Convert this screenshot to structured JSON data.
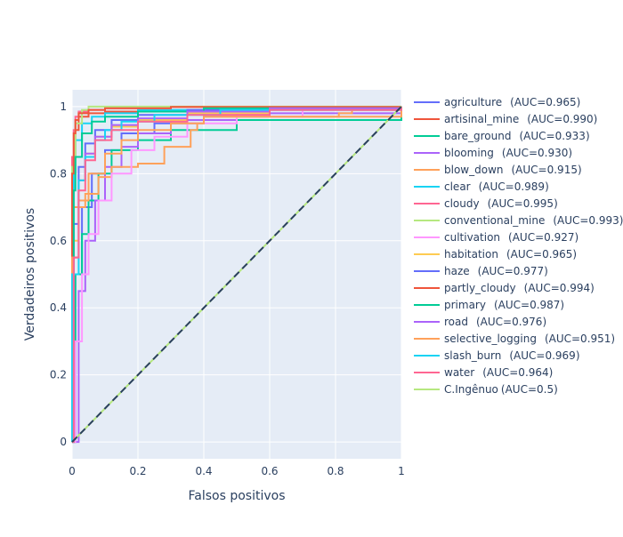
{
  "chart_data": {
    "type": "line",
    "title": "",
    "xlabel": "Falsos positivos",
    "ylabel": "Verdadeiros positivos",
    "xlim": [
      0,
      1
    ],
    "ylim": [
      -0.05,
      1.05
    ],
    "x_ticks": [
      "0",
      "0.2",
      "0.4",
      "0.6",
      "0.8",
      "1"
    ],
    "y_ticks": [
      "0",
      "0.2",
      "0.4",
      "0.6",
      "0.8",
      "1"
    ],
    "grid": true,
    "legend_position": "right",
    "series": [
      {
        "name": "agriculture",
        "auc_label": "(AUC=0.965)",
        "color": "#636efa",
        "x": [
          0,
          0.01,
          0.03,
          0.06,
          0.1,
          0.15,
          0.25,
          0.4,
          0.6,
          1
        ],
        "y": [
          0,
          0.5,
          0.7,
          0.8,
          0.87,
          0.92,
          0.95,
          0.975,
          0.99,
          1
        ]
      },
      {
        "name": "artisinal_mine",
        "auc_label": "(AUC=0.990)",
        "color": "#ef553b",
        "x": [
          0,
          0.0,
          0.01,
          0.02,
          0.05,
          0.1,
          0.3,
          0.57,
          0.57,
          1
        ],
        "y": [
          0,
          0.8,
          0.93,
          0.97,
          0.98,
          0.985,
          0.985,
          0.985,
          0.995,
          1
        ]
      },
      {
        "name": "bare_ground",
        "auc_label": "(AUC=0.933)",
        "color": "#00cc96",
        "x": [
          0,
          0.01,
          0.03,
          0.05,
          0.08,
          0.12,
          0.2,
          0.3,
          0.5,
          1
        ],
        "y": [
          0,
          0.5,
          0.62,
          0.72,
          0.8,
          0.87,
          0.9,
          0.93,
          0.96,
          1
        ]
      },
      {
        "name": "blooming",
        "auc_label": "(AUC=0.930)",
        "color": "#ab63fa",
        "x": [
          0,
          0.02,
          0.04,
          0.07,
          0.1,
          0.15,
          0.2,
          0.3,
          0.5,
          1
        ],
        "y": [
          0,
          0.45,
          0.6,
          0.72,
          0.82,
          0.88,
          0.92,
          0.96,
          0.98,
          1
        ]
      },
      {
        "name": "blow_down",
        "auc_label": "(AUC=0.915)",
        "color": "#ffa15a",
        "x": [
          0,
          0.0,
          0.04,
          0.08,
          0.12,
          0.2,
          0.28,
          0.36,
          0.38,
          0.4,
          0.81,
          0.85,
          1
        ],
        "y": [
          0,
          0.7,
          0.74,
          0.79,
          0.82,
          0.83,
          0.88,
          0.93,
          0.95,
          0.97,
          0.98,
          0.99,
          1
        ]
      },
      {
        "name": "clear",
        "auc_label": "(AUC=0.989)",
        "color": "#19d3f3",
        "x": [
          0,
          0.005,
          0.01,
          0.03,
          0.06,
          0.1,
          0.2,
          0.4,
          1
        ],
        "y": [
          0,
          0.8,
          0.9,
          0.95,
          0.97,
          0.98,
          0.99,
          0.997,
          1
        ]
      },
      {
        "name": "cloudy",
        "auc_label": "(AUC=0.995)",
        "color": "#ff6692",
        "x": [
          0,
          0.0,
          0.005,
          0.01,
          0.02,
          0.05,
          0.1,
          0.3,
          1
        ],
        "y": [
          0,
          0.85,
          0.93,
          0.97,
          0.985,
          0.99,
          0.995,
          0.999,
          1
        ]
      },
      {
        "name": "conventional_mine",
        "auc_label": "(AUC=0.993)",
        "color": "#b6e880",
        "x": [
          0,
          0.0,
          0.01,
          0.03,
          0.05,
          0.2,
          1
        ],
        "y": [
          0,
          0.82,
          0.95,
          0.99,
          1.0,
          1.0,
          1
        ]
      },
      {
        "name": "cultivation",
        "auc_label": "(AUC=0.927)",
        "color": "#ff97ff",
        "x": [
          0,
          0.01,
          0.03,
          0.05,
          0.08,
          0.12,
          0.18,
          0.25,
          0.35,
          0.5,
          0.7,
          1
        ],
        "y": [
          0,
          0.3,
          0.5,
          0.62,
          0.72,
          0.8,
          0.87,
          0.91,
          0.95,
          0.97,
          0.99,
          1
        ]
      },
      {
        "name": "habitation",
        "auc_label": "(AUC=0.965)",
        "color": "#fecb52",
        "x": [
          0,
          0.005,
          0.02,
          0.04,
          0.07,
          0.12,
          0.2,
          0.35,
          0.6,
          1
        ],
        "y": [
          0,
          0.6,
          0.78,
          0.86,
          0.91,
          0.94,
          0.96,
          0.98,
          0.99,
          1
        ]
      },
      {
        "name": "haze",
        "auc_label": "(AUC=0.977)",
        "color": "#636efa",
        "x": [
          0,
          0.005,
          0.02,
          0.04,
          0.07,
          0.12,
          0.2,
          0.35,
          0.6,
          1
        ],
        "y": [
          0,
          0.65,
          0.82,
          0.89,
          0.93,
          0.96,
          0.975,
          0.99,
          0.997,
          1
        ]
      },
      {
        "name": "partly_cloudy",
        "auc_label": "(AUC=0.994)",
        "color": "#ef553b",
        "x": [
          0,
          0.0,
          0.005,
          0.01,
          0.02,
          0.05,
          0.1,
          0.3,
          1
        ],
        "y": [
          0,
          0.8,
          0.92,
          0.96,
          0.98,
          0.99,
          0.995,
          0.999,
          1
        ]
      },
      {
        "name": "primary",
        "auc_label": "(AUC=0.987)",
        "color": "#00cc96",
        "x": [
          0,
          0.0,
          0.005,
          0.01,
          0.03,
          0.06,
          0.1,
          0.2,
          0.4,
          1
        ],
        "y": [
          0,
          0.4,
          0.75,
          0.85,
          0.92,
          0.955,
          0.97,
          0.985,
          0.995,
          1
        ]
      },
      {
        "name": "road",
        "auc_label": "(AUC=0.976)",
        "color": "#ab63fa",
        "x": [
          0,
          0.005,
          0.02,
          0.04,
          0.07,
          0.12,
          0.2,
          0.35,
          0.6,
          1
        ],
        "y": [
          0,
          0.55,
          0.78,
          0.86,
          0.91,
          0.945,
          0.965,
          0.985,
          0.995,
          1
        ]
      },
      {
        "name": "selective_logging",
        "auc_label": "(AUC=0.951)",
        "color": "#ffa15a",
        "x": [
          0,
          0.0,
          0.02,
          0.05,
          0.1,
          0.15,
          0.2,
          0.3,
          0.4,
          1
        ],
        "y": [
          0,
          0.55,
          0.72,
          0.8,
          0.86,
          0.9,
          0.93,
          0.95,
          0.97,
          1
        ]
      },
      {
        "name": "slash_burn",
        "auc_label": "(AUC=0.969)",
        "color": "#19d3f3",
        "x": [
          0,
          0.0,
          0.02,
          0.04,
          0.07,
          0.1,
          0.15,
          0.25,
          0.45,
          1
        ],
        "y": [
          0,
          0.5,
          0.78,
          0.85,
          0.9,
          0.93,
          0.955,
          0.975,
          0.99,
          1
        ]
      },
      {
        "name": "water",
        "auc_label": "(AUC=0.964)",
        "color": "#ff6692",
        "x": [
          0,
          0.005,
          0.02,
          0.04,
          0.07,
          0.12,
          0.2,
          0.35,
          0.6,
          1
        ],
        "y": [
          0,
          0.55,
          0.75,
          0.84,
          0.9,
          0.93,
          0.955,
          0.975,
          0.99,
          1
        ]
      },
      {
        "name": "C.Ingênuo",
        "auc_label": "(AUC=0.5)",
        "color": "#b6e880",
        "x": [
          0,
          1
        ],
        "y": [
          0,
          1
        ]
      }
    ],
    "baseline": {
      "x": [
        0,
        1
      ],
      "y": [
        0,
        1
      ],
      "color": "#2a3f5f",
      "dash": "dash"
    }
  }
}
